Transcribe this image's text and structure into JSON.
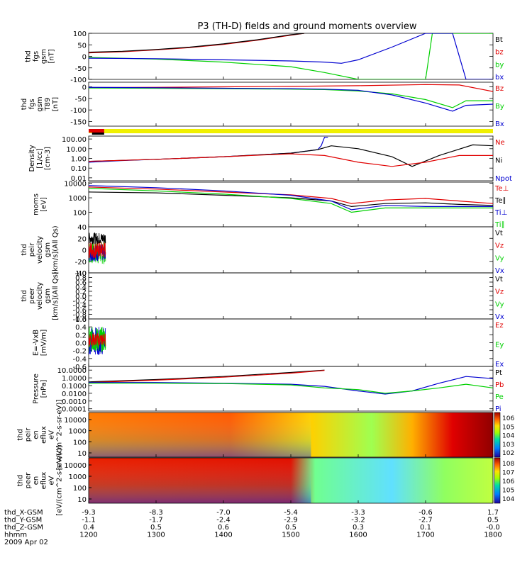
{
  "title": "P3 (TH-D) fields and ground moments overview",
  "colors": {
    "black": "#000000",
    "red": "#e00000",
    "green": "#00d000",
    "blue": "#0000d0",
    "yellow": "#f0f000"
  },
  "chart_data": [
    {
      "type": "line",
      "ylabel": [
        "thd",
        "fgs",
        "gsm",
        "[nT]"
      ],
      "ylim": [
        -100,
        100
      ],
      "ticks": [
        {
          "v": 100,
          "label": "100"
        },
        {
          "v": 50,
          "label": "50"
        },
        {
          "v": 0,
          "label": "0"
        },
        {
          "v": -50,
          "label": "-50"
        },
        {
          "v": -100,
          "label": "-100"
        }
      ],
      "legend": [
        {
          "label": "Bt",
          "color": "#000000"
        },
        {
          "label": "bz",
          "color": "#e00000"
        },
        {
          "label": "by",
          "color": "#00d000"
        },
        {
          "label": "bx",
          "color": "#0000d0"
        }
      ],
      "series": [
        {
          "color": "#e00000",
          "x": [
            1200,
            1250,
            1300,
            1350,
            1400,
            1450,
            1500,
            1520
          ],
          "y": [
            15,
            20,
            28,
            38,
            52,
            70,
            92,
            100
          ]
        },
        {
          "color": "#000000",
          "x": [
            1200,
            1250,
            1300,
            1350,
            1400,
            1450,
            1500,
            1520
          ],
          "y": [
            18,
            22,
            30,
            40,
            54,
            72,
            94,
            100
          ]
        },
        {
          "color": "#00d000",
          "x": [
            1200,
            1300,
            1400,
            1500,
            1550,
            1600,
            1660,
            1700,
            1710,
            1730,
            1760,
            1800
          ],
          "y": [
            -5,
            -12,
            -25,
            -45,
            -70,
            -100,
            -100,
            -100,
            100,
            100,
            100,
            100
          ]
        },
        {
          "color": "#0000d0",
          "x": [
            1200,
            1300,
            1400,
            1500,
            1550,
            1575,
            1600,
            1650,
            1700,
            1740,
            1760,
            1800
          ],
          "y": [
            -8,
            -10,
            -15,
            -20,
            -25,
            -30,
            -15,
            40,
            100,
            100,
            -100,
            -100
          ]
        }
      ]
    },
    {
      "type": "line",
      "ylabel": [
        "thd",
        "fgs",
        "gsm",
        "T89",
        "[nT]"
      ],
      "ylim": [
        -170,
        20
      ],
      "ticks": [
        {
          "v": 0,
          "label": "0"
        },
        {
          "v": -50,
          "label": "-50"
        },
        {
          "v": -100,
          "label": "-100"
        },
        {
          "v": -150,
          "label": "-150"
        }
      ],
      "legend": [
        {
          "label": "Bz",
          "color": "#e00000"
        },
        {
          "label": "By",
          "color": "#00d000"
        },
        {
          "label": "Bx",
          "color": "#0000d0"
        }
      ],
      "series": [
        {
          "color": "#e00000",
          "x": [
            1200,
            1300,
            1400,
            1500,
            1600,
            1700,
            1750,
            1800
          ],
          "y": [
            -3,
            -2,
            0,
            2,
            5,
            10,
            8,
            -20
          ]
        },
        {
          "color": "#00d000",
          "x": [
            1200,
            1300,
            1400,
            1500,
            1550,
            1600,
            1650,
            1700,
            1740,
            1760,
            1800
          ],
          "y": [
            -5,
            -6,
            -8,
            -10,
            -12,
            -18,
            -30,
            -55,
            -90,
            -60,
            -60
          ]
        },
        {
          "color": "#0000d0",
          "x": [
            1200,
            1300,
            1400,
            1500,
            1550,
            1600,
            1650,
            1700,
            1740,
            1760,
            1800
          ],
          "y": [
            -2,
            -4,
            -6,
            -8,
            -10,
            -15,
            -35,
            -70,
            -105,
            -80,
            -75
          ]
        }
      ]
    },
    {
      "type": "line",
      "ylabel": [
        "Density",
        "[1/cc]",
        "[cm-3]"
      ],
      "log": true,
      "ylim": [
        0.005,
        200
      ],
      "ticks": [
        {
          "v": 100,
          "label": "100.00"
        },
        {
          "v": 10,
          "label": "10.00"
        },
        {
          "v": 1,
          "label": "1.00"
        },
        {
          "v": 0.1,
          "label": "0.10"
        },
        {
          "v": 0.01,
          "label": "0.01"
        }
      ],
      "legend": [
        {
          "label": "Ne",
          "color": "#e00000"
        },
        {
          "label": "Ni",
          "color": "#000000"
        },
        {
          "label": "Npot",
          "color": "#0000d0"
        }
      ],
      "series": [
        {
          "color": "#0000d0",
          "x": [
            1200,
            1250,
            1300,
            1400,
            1500,
            1540,
            1545,
            1550,
            1555
          ],
          "y": [
            0.4,
            0.6,
            0.8,
            1.5,
            3.5,
            8,
            20,
            150,
            150
          ]
        },
        {
          "color": "#000000",
          "x": [
            1200,
            1300,
            1400,
            1500,
            1540,
            1560,
            1600,
            1650,
            1680,
            1720,
            1770,
            1800
          ],
          "y": [
            0.5,
            0.8,
            1.5,
            3.5,
            8,
            20,
            10,
            1.5,
            0.15,
            2,
            25,
            20
          ]
        },
        {
          "color": "#e00000",
          "x": [
            1200,
            1300,
            1400,
            1500,
            1550,
            1600,
            1650,
            1700,
            1750,
            1800
          ],
          "y": [
            0.5,
            0.8,
            1.5,
            3,
            2,
            0.4,
            0.15,
            0.4,
            2,
            2
          ]
        }
      ]
    },
    {
      "type": "line",
      "ylabel": [
        "moms",
        "[eV]"
      ],
      "log": true,
      "ylim": [
        10,
        12000
      ],
      "ticks": [
        {
          "v": 10000,
          "label": "10000"
        },
        {
          "v": 1000,
          "label": "1000"
        },
        {
          "v": 100,
          "label": "100"
        }
      ],
      "legend": [
        {
          "label": "Te⊥",
          "color": "#e00000"
        },
        {
          "label": "Te∥",
          "color": "#000000"
        },
        {
          "label": "Ti⊥",
          "color": "#0000d0"
        },
        {
          "label": "Ti∥",
          "color": "#00d000"
        }
      ],
      "series": [
        {
          "color": "#e00000",
          "x": [
            1200,
            1300,
            1400,
            1500,
            1560,
            1590,
            1640,
            1700,
            1750,
            1800
          ],
          "y": [
            5500,
            4000,
            2500,
            1600,
            900,
            400,
            700,
            900,
            600,
            400
          ]
        },
        {
          "color": "#000000",
          "x": [
            1200,
            1300,
            1400,
            1500,
            1560,
            1590,
            1640,
            1700,
            1750,
            1800
          ],
          "y": [
            2500,
            2200,
            1500,
            1000,
            600,
            250,
            400,
            450,
            350,
            300
          ]
        },
        {
          "color": "#0000d0",
          "x": [
            1200,
            1300,
            1400,
            1500,
            1560,
            1590,
            1640,
            1700,
            1750,
            1800
          ],
          "y": [
            7000,
            5000,
            3000,
            1500,
            600,
            150,
            300,
            250,
            250,
            250
          ]
        },
        {
          "color": "#00d000",
          "x": [
            1200,
            1300,
            1400,
            1500,
            1560,
            1590,
            1640,
            1700,
            1750,
            1800
          ],
          "y": [
            4500,
            3000,
            1800,
            900,
            400,
            100,
            200,
            200,
            200,
            200
          ]
        }
      ]
    },
    {
      "type": "line",
      "ylabel": [
        "thd",
        "peir",
        "velocity",
        "gsm",
        "[km/s](All Qs)"
      ],
      "ylim": [
        -40,
        40
      ],
      "ticks": [
        {
          "v": 40,
          "label": "40"
        },
        {
          "v": 20,
          "label": "20"
        },
        {
          "v": 0,
          "label": "0"
        },
        {
          "v": -20,
          "label": "-20"
        },
        {
          "v": -40,
          "label": "-40"
        }
      ],
      "legend": [
        {
          "label": "Vt",
          "color": "#000000"
        },
        {
          "label": "Vz",
          "color": "#e00000"
        },
        {
          "label": "Vy",
          "color": "#00d000"
        },
        {
          "label": "Vx",
          "color": "#0000d0"
        }
      ],
      "noise": {
        "x": [
          1200,
          1225
        ],
        "series": [
          {
            "color": "#00d000",
            "y": [
              -25,
              15
            ]
          },
          {
            "color": "#0000d0",
            "y": [
              -20,
              10
            ]
          },
          {
            "color": "#e00000",
            "y": [
              -15,
              15
            ]
          },
          {
            "color": "#000000",
            "y": [
              10,
              30
            ]
          }
        ]
      }
    },
    {
      "type": "line",
      "ylabel": [
        "thd",
        "peer",
        "velocity",
        "gsm",
        "[km/s](All Qs)"
      ],
      "ylim": [
        -1,
        1
      ],
      "ticks": [
        {
          "v": 1,
          "label": "1.0"
        },
        {
          "v": 0.8,
          "label": "0.8"
        },
        {
          "v": 0.6,
          "label": "0.6"
        },
        {
          "v": 0.4,
          "label": "0.4"
        },
        {
          "v": 0.2,
          "label": "0.2"
        },
        {
          "v": 0,
          "label": "0.0"
        },
        {
          "v": -0.2,
          "label": "-0.2"
        },
        {
          "v": -0.4,
          "label": "-0.4"
        },
        {
          "v": -0.6,
          "label": "-0.6"
        },
        {
          "v": -0.8,
          "label": "-0.8"
        },
        {
          "v": -1,
          "label": "-1.0"
        }
      ],
      "legend": [
        {
          "label": "Vt",
          "color": "#000000"
        },
        {
          "label": "Vz",
          "color": "#e00000"
        },
        {
          "label": "Vy",
          "color": "#00d000"
        },
        {
          "label": "Vx",
          "color": "#0000d0"
        }
      ]
    },
    {
      "type": "line",
      "ylabel": [
        "E=-VxB",
        "[mV/m]"
      ],
      "ylim": [
        -0.6,
        0.6
      ],
      "ticks": [
        {
          "v": 0.6,
          "label": "0.6"
        },
        {
          "v": 0.4,
          "label": "0.4"
        },
        {
          "v": 0.2,
          "label": "0.2"
        },
        {
          "v": 0,
          "label": "0.0"
        },
        {
          "v": -0.2,
          "label": "-0.2"
        },
        {
          "v": -0.4,
          "label": "-0.4"
        },
        {
          "v": -0.6,
          "label": "-0.6"
        }
      ],
      "legend": [
        {
          "label": "Ez",
          "color": "#e00000"
        },
        {
          "label": "Ey",
          "color": "#00d000"
        },
        {
          "label": "Ex",
          "color": "#0000d0"
        }
      ],
      "noise": {
        "x": [
          1200,
          1225
        ],
        "series": [
          {
            "color": "#0000d0",
            "y": [
              -0.3,
              0.4
            ]
          },
          {
            "color": "#00d000",
            "y": [
              -0.25,
              0.4
            ]
          },
          {
            "color": "#e00000",
            "y": [
              -0.1,
              0.25
            ]
          }
        ]
      }
    },
    {
      "type": "line",
      "ylabel": [
        "Pressure",
        "[nPa]"
      ],
      "log": true,
      "ylim": [
        5e-05,
        30
      ],
      "ticks": [
        {
          "v": 10,
          "label": "10.0000"
        },
        {
          "v": 1,
          "label": "1.0000"
        },
        {
          "v": 0.1,
          "label": "0.1000"
        },
        {
          "v": 0.01,
          "label": "0.0100"
        },
        {
          "v": 0.001,
          "label": "0.0010"
        },
        {
          "v": 0.0001,
          "label": "0.0001"
        }
      ],
      "legend": [
        {
          "label": "Pt",
          "color": "#000000"
        },
        {
          "label": "Pb",
          "color": "#e00000"
        },
        {
          "label": "Pe",
          "color": "#00d000"
        },
        {
          "label": "Pi",
          "color": "#0000d0"
        }
      ],
      "series": [
        {
          "color": "#000000",
          "x": [
            1200,
            1300,
            1400,
            1500,
            1550
          ],
          "y": [
            0.3,
            0.6,
            1.5,
            5,
            10
          ]
        },
        {
          "color": "#e00000",
          "x": [
            1200,
            1300,
            1400,
            1500,
            1550
          ],
          "y": [
            0.25,
            0.5,
            1.2,
            4,
            9
          ]
        },
        {
          "color": "#0000d0",
          "x": [
            1200,
            1300,
            1400,
            1500,
            1550,
            1600,
            1640,
            1680,
            1720,
            1760,
            1800
          ],
          "y": [
            0.25,
            0.25,
            0.2,
            0.15,
            0.08,
            0.02,
            0.008,
            0.02,
            0.2,
            1.5,
            0.8
          ]
        },
        {
          "color": "#00d000",
          "x": [
            1200,
            1300,
            1400,
            1500,
            1550,
            1600,
            1640,
            1680,
            1720,
            1760,
            1800
          ],
          "y": [
            0.2,
            0.2,
            0.18,
            0.12,
            0.05,
            0.03,
            0.01,
            0.02,
            0.05,
            0.15,
            0.05
          ]
        }
      ]
    },
    {
      "type": "heatmap",
      "ylabel": [
        "thd",
        "peir",
        "en",
        "eflux",
        "eV",
        "[eV/(cm^2-s-sr-eV)]"
      ],
      "ticks": [
        {
          "label": "10000"
        },
        {
          "label": "1000"
        },
        {
          "label": "100"
        },
        {
          "label": "10"
        }
      ],
      "colorbar_ticks": [
        "10^6",
        "10^5",
        "10^4",
        "10^3",
        "10^2"
      ]
    },
    {
      "type": "heatmap",
      "ylabel": [
        "thd",
        "peer",
        "en",
        "eflux",
        "eV",
        "[eV/(cm^2-s-sr-eV)]"
      ],
      "ticks": [
        {
          "label": "10000"
        },
        {
          "label": "1000"
        },
        {
          "label": "100"
        },
        {
          "label": "10"
        }
      ],
      "colorbar_ticks": [
        "10^8",
        "10^7",
        "10^6",
        "10^5",
        "10^4"
      ]
    }
  ],
  "x_axis": {
    "ticks": [
      1200,
      1300,
      1400,
      1500,
      1600,
      1700,
      1800
    ],
    "rows": [
      {
        "label": "thd_X-GSM",
        "values": [
          "-9.3",
          "-8.3",
          "-7.0",
          "-5.4",
          "-3.3",
          "-0.6",
          "1.7"
        ]
      },
      {
        "label": "thd_Y-GSM",
        "values": [
          "-1.1",
          "-1.7",
          "-2.4",
          "-2.9",
          "-3.2",
          "-2.7",
          "0.5"
        ]
      },
      {
        "label": "thd_Z-GSM",
        "values": [
          "0.4",
          "0.5",
          "0.6",
          "0.5",
          "0.3",
          "0.1",
          "-0.0"
        ]
      },
      {
        "label": "hhmm",
        "values": [
          "1200",
          "1300",
          "1400",
          "1500",
          "1600",
          "1700",
          "1800"
        ]
      }
    ],
    "date": "2009 Apr 02"
  }
}
